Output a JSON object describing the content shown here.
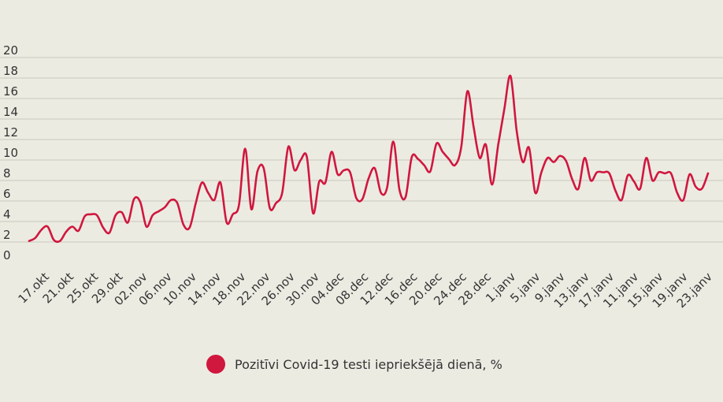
{
  "chart_data": {
    "type": "line",
    "title": "",
    "xlabel": "",
    "ylabel": "",
    "ylim": [
      0,
      20
    ],
    "yticks": [
      0,
      2,
      4,
      6,
      8,
      10,
      12,
      14,
      16,
      18,
      20
    ],
    "grid": true,
    "legend_position": "bottom",
    "x_tick_labels": [
      "17.okt",
      "21.okt",
      "25.okt",
      "29.okt",
      "02.nov",
      "06.nov",
      "10.nov",
      "14.nov",
      "18.nov",
      "22.nov",
      "26.nov",
      "30.nov",
      "04.dec",
      "08.dec",
      "12.dec",
      "16.dec",
      "20.dec",
      "24.dec",
      "28.dec",
      "1.janv",
      "5.janv",
      "9.janv",
      "13.janv",
      "17.janv",
      "11.janv",
      "15.janv",
      "19.janv",
      "23.janv"
    ],
    "series": [
      {
        "name": "Pozitīvi Covid-19 testi iepriekšējā dienā, %",
        "color": "#d0173e",
        "values": [
          2.1,
          2.4,
          3.2,
          3.5,
          2.2,
          2.1,
          3.0,
          3.5,
          3.1,
          4.5,
          4.7,
          4.6,
          3.4,
          2.9,
          4.6,
          4.9,
          3.9,
          6.2,
          5.9,
          3.5,
          4.6,
          5.0,
          5.4,
          6.1,
          5.8,
          3.7,
          3.4,
          5.8,
          7.8,
          6.8,
          6.1,
          7.8,
          3.9,
          4.7,
          5.6,
          11.1,
          5.2,
          8.9,
          9.2,
          5.3,
          5.8,
          6.8,
          11.3,
          9.0,
          10.0,
          10.3,
          4.8,
          7.9,
          7.8,
          10.8,
          8.6,
          9.0,
          8.8,
          6.3,
          6.2,
          8.2,
          9.2,
          6.8,
          7.3,
          11.8,
          7.1,
          6.4,
          10.3,
          10.1,
          9.5,
          8.9,
          11.6,
          10.8,
          10.1,
          9.5,
          11.2,
          16.7,
          13.3,
          10.2,
          11.5,
          7.6,
          11.5,
          15.0,
          18.2,
          12.8,
          9.8,
          11.2,
          6.8,
          8.8,
          10.2,
          9.8,
          10.4,
          9.9,
          8.1,
          7.2,
          10.2,
          8.0,
          8.8,
          8.8,
          8.7,
          7.0,
          6.1,
          8.5,
          7.9,
          7.2,
          10.2,
          8.0,
          8.8,
          8.7,
          8.7,
          6.8,
          6.1,
          8.6,
          7.4,
          7.2,
          8.7
        ]
      }
    ]
  },
  "legend": {
    "label": "Pozitīvi Covid-19 testi iepriekšējā dienā, %",
    "icon": "circle-marker"
  }
}
